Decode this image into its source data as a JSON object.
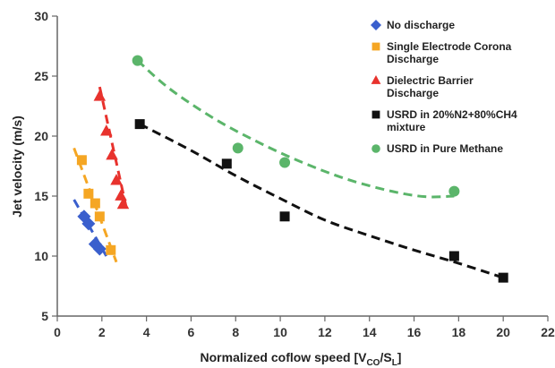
{
  "chart_data": {
    "type": "scatter",
    "title": "",
    "xlabel_main": "Normalized coflow speed [V",
    "xlabel_sub1": "CO",
    "xlabel_mid": "/S",
    "xlabel_sub2": "L",
    "xlabel_end": "]",
    "ylabel": "Jet velocity (m/s)",
    "xlim": [
      0,
      22
    ],
    "ylim": [
      5,
      30
    ],
    "xticks": [
      0,
      2,
      4,
      6,
      8,
      10,
      12,
      14,
      16,
      18,
      20,
      22
    ],
    "yticks": [
      5,
      10,
      15,
      20,
      25,
      30
    ],
    "grid": false,
    "legend_position": "top-right",
    "series": [
      {
        "name": "No discharge",
        "color": "#3a5fcd",
        "marker": "diamond",
        "points": [
          [
            1.2,
            13.3
          ],
          [
            1.4,
            12.7
          ],
          [
            1.7,
            11.0
          ],
          [
            1.9,
            10.6
          ]
        ],
        "trend": [
          [
            0.75,
            14.7
          ],
          [
            2.2,
            10.0
          ]
        ]
      },
      {
        "name": "Single Electrode Corona Discharge",
        "color": "#f5a623",
        "marker": "square",
        "points": [
          [
            1.1,
            18.0
          ],
          [
            1.4,
            15.2
          ],
          [
            1.7,
            14.4
          ],
          [
            1.9,
            13.3
          ],
          [
            2.4,
            10.5
          ]
        ],
        "trend": [
          [
            0.75,
            19.0
          ],
          [
            2.65,
            9.5
          ]
        ]
      },
      {
        "name": "Dielectric Barrier Discharge",
        "color": "#e8322d",
        "marker": "triangle",
        "points": [
          [
            1.9,
            23.3
          ],
          [
            2.2,
            20.4
          ],
          [
            2.45,
            18.4
          ],
          [
            2.65,
            16.3
          ],
          [
            2.85,
            15.0
          ],
          [
            2.95,
            14.3
          ]
        ],
        "trend": [
          [
            1.9,
            24.1
          ],
          [
            3.1,
            14.0
          ]
        ]
      },
      {
        "name": "USRD in 20%N2+80%CH4 mixture",
        "color": "#111111",
        "marker": "square",
        "points": [
          [
            3.7,
            21.0
          ],
          [
            7.6,
            17.7
          ],
          [
            10.2,
            13.3
          ],
          [
            17.8,
            10.0
          ],
          [
            20.0,
            8.2
          ]
        ],
        "trend": [
          [
            3.7,
            21.0
          ],
          [
            6,
            18.8
          ],
          [
            8,
            16.7
          ],
          [
            10,
            14.8
          ],
          [
            12,
            13.0
          ],
          [
            14,
            11.7
          ],
          [
            16,
            10.5
          ],
          [
            18,
            9.4
          ],
          [
            20,
            8.2
          ]
        ]
      },
      {
        "name": "USRD in Pure Methane",
        "color": "#5bb56a",
        "marker": "circle",
        "points": [
          [
            3.6,
            26.3
          ],
          [
            8.1,
            19.0
          ],
          [
            10.2,
            17.8
          ],
          [
            17.8,
            15.4
          ]
        ],
        "trend": [
          [
            3.6,
            26.3
          ],
          [
            5,
            24.0
          ],
          [
            7,
            21.5
          ],
          [
            9,
            19.5
          ],
          [
            11,
            17.8
          ],
          [
            13,
            16.4
          ],
          [
            15,
            15.4
          ],
          [
            16.5,
            14.95
          ],
          [
            17.8,
            15.0
          ]
        ]
      }
    ]
  }
}
